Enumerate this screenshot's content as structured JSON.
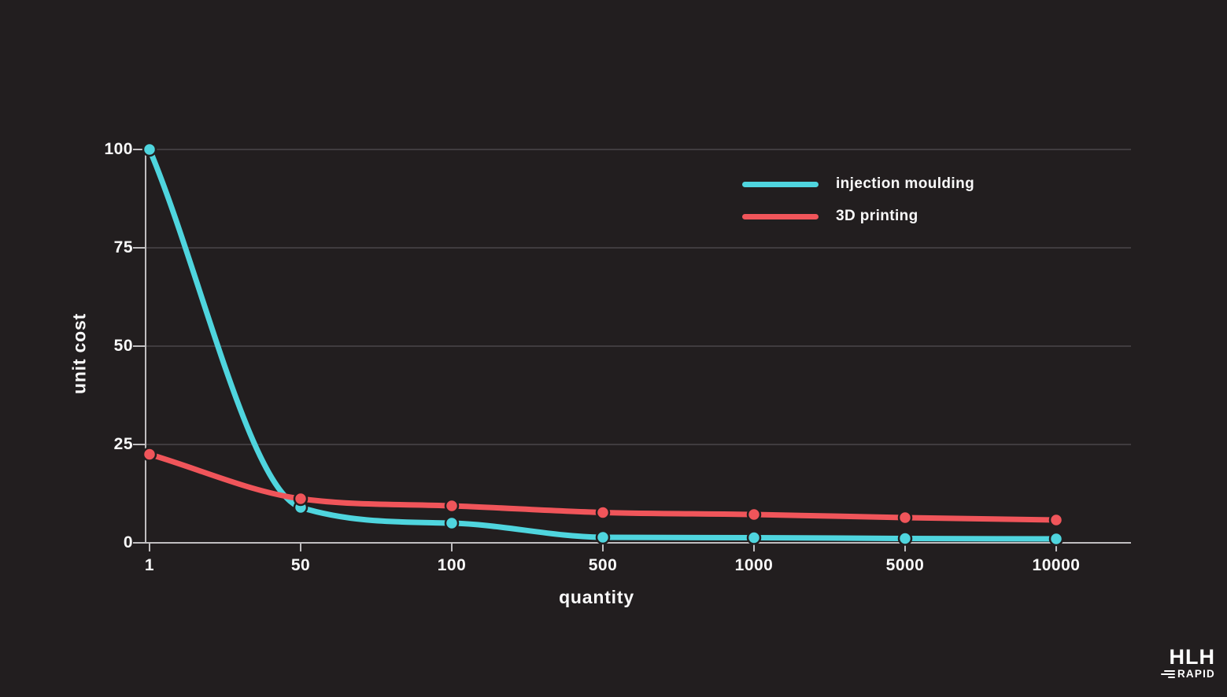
{
  "branding": {
    "primary": "HLH",
    "secondary": "RAPID"
  },
  "colors": {
    "background": "#221e1f",
    "grid": "#4a474a",
    "axis": "#c0bec0",
    "text": "#fafafa",
    "injection_moulding": "#4fd5de",
    "printing_3d": "#f0555a"
  },
  "chart_data": {
    "type": "line",
    "title": "",
    "xlabel": "quantity",
    "ylabel": "unit cost",
    "x_axis_type": "categorical",
    "categories": [
      "1",
      "50",
      "100",
      "500",
      "1000",
      "5000",
      "10000"
    ],
    "ytick_labels": [
      "100",
      "75",
      "50",
      "25",
      "0"
    ],
    "ylim": [
      0,
      100
    ],
    "grid": "horizontal",
    "legend_position": "top-right",
    "curve": "monotone",
    "marker": "circle",
    "series": [
      {
        "name": "injection moulding",
        "color": "#4fd5de",
        "values": [
          100,
          9,
          5,
          1.4,
          1.3,
          1.1,
          1
        ]
      },
      {
        "name": "3D printing",
        "color": "#f0555a",
        "values": [
          22.5,
          11.2,
          9.4,
          7.7,
          7.2,
          6.4,
          5.8
        ]
      }
    ]
  }
}
